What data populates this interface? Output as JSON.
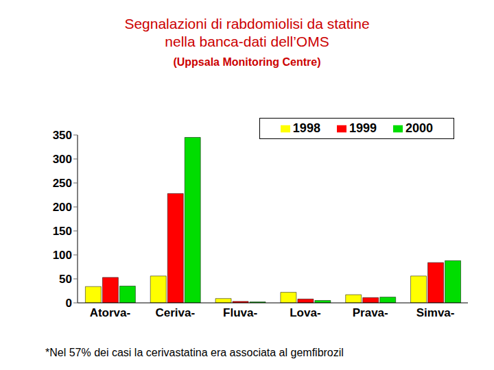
{
  "chart_data": {
    "type": "bar",
    "title": "Segnalazioni di rabdomiolisi da statine\nnella banca-dati dell’OMS",
    "subtitle": "(Uppsala Monitoring Centre)",
    "annotations": [
      "*Nel 57% dei casi la cerivastatina era associata al gemfibrozil"
    ],
    "categories": [
      "Atorva-",
      "Ceriva-",
      "Fluva-",
      "Lova-",
      "Prava-",
      "Simva-"
    ],
    "series": [
      {
        "name": "1998",
        "color": "#ffff00",
        "values": [
          34,
          56,
          9,
          22,
          17,
          56
        ]
      },
      {
        "name": "1999",
        "color": "#ff0000",
        "values": [
          53,
          228,
          3,
          8,
          11,
          84
        ]
      },
      {
        "name": "2000",
        "color": "#00dd00",
        "values": [
          35,
          345,
          2,
          5,
          12,
          88
        ]
      }
    ],
    "ylim": [
      0,
      350
    ],
    "yticks": [
      0,
      50,
      100,
      150,
      200,
      250,
      300,
      350
    ],
    "grid": false,
    "legend": "upper right"
  }
}
